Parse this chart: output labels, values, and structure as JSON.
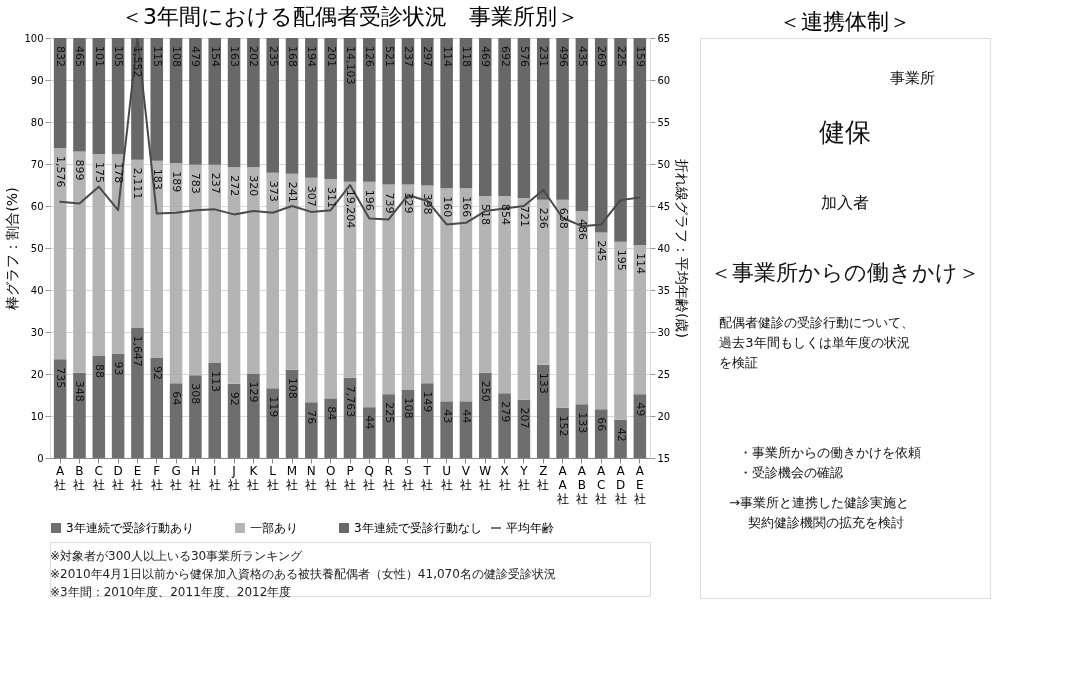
{
  "chart_data": [
    {
      "type": "bar",
      "title": "＜3年間における配偶者受診状況　事業所別＞",
      "ylabel": "棒グラフ：割合(%)",
      "y2label": "折れ線グラフ：平均年齢(歳)",
      "categories": [
        "A社",
        "B社",
        "C社",
        "D社",
        "E社",
        "F社",
        "G社",
        "H社",
        "I社",
        "J社",
        "K社",
        "L社",
        "M社",
        "N社",
        "O社",
        "P社",
        "Q社",
        "R社",
        "S社",
        "T社",
        "U社",
        "V社",
        "W社",
        "X社",
        "Y社",
        "Z社",
        "AA社",
        "AB社",
        "AC社",
        "AD社",
        "AE社"
      ],
      "stacked": true,
      "ylim": [
        0,
        100
      ],
      "yticks": [
        0,
        10,
        20,
        30,
        40,
        50,
        60,
        70,
        80,
        90,
        100
      ],
      "y2lim": [
        15,
        65
      ],
      "y2ticks": [
        15,
        20,
        25,
        30,
        35,
        40,
        45,
        50,
        55,
        60,
        65
      ],
      "grid": "y",
      "legend": "bottom",
      "series": [
        {
          "name": "3年連続で受診行動あり",
          "color": "#6e6e6e",
          "values": [
            23.5,
            20.3,
            24.3,
            24.9,
            31.1,
            23.8,
            17.8,
            19.7,
            22.6,
            17.7,
            20.1,
            16.6,
            21.0,
            13.3,
            14.2,
            19.1,
            12.1,
            15.2,
            16.3,
            17.8,
            13.5,
            13.5,
            20.3,
            15.4,
            13.9,
            22.2,
            12.0,
            12.8,
            11.6,
            9.1,
            15.2
          ]
        },
        {
          "name": "一部あり",
          "color": "#b4b4b4",
          "values": [
            50.3,
            52.7,
            48.1,
            47.4,
            39.9,
            47.0,
            52.4,
            50.1,
            47.2,
            51.5,
            49.1,
            51.3,
            46.7,
            53.4,
            52.2,
            46.7,
            53.7,
            49.9,
            48.8,
            47.1,
            50.7,
            50.7,
            42.1,
            47.0,
            48.0,
            39.3,
            49.5,
            46.0,
            42.1,
            42.4,
            35.5
          ]
        },
        {
          "name": "3年連続で受診行動なし",
          "color": "#686868",
          "values": [
            26.2,
            27.0,
            27.6,
            27.7,
            29.0,
            29.2,
            29.8,
            30.2,
            30.2,
            30.8,
            30.8,
            32.1,
            32.3,
            33.3,
            33.6,
            34.2,
            34.2,
            34.9,
            34.9,
            35.1,
            35.8,
            35.8,
            37.6,
            37.6,
            38.1,
            38.5,
            38.5,
            41.2,
            46.3,
            48.5,
            49.3
          ]
        },
        {
          "name": "平均年齢",
          "type": "line",
          "axis": "y2",
          "color": "#4a4a4a",
          "values": [
            45.5,
            45.3,
            47.3,
            44.5,
            65,
            44.1,
            44.2,
            44.5,
            44.6,
            44.0,
            44.4,
            44.2,
            45.0,
            44.3,
            44.5,
            47.5,
            43.5,
            43.4,
            46.3,
            45.6,
            42.8,
            43.0,
            44.4,
            44.7,
            45.0,
            46.9,
            43.6,
            42.6,
            42.8,
            45.7,
            46.0
          ]
        }
      ],
      "annotations": [
        "※対象者が300人以上いる30事業所ランキング",
        "※2010年4月1日以前から健保加入資格のある被扶養配偶者（女性）41,070名の健診受診状況",
        "※3年間：2010年度、2011年度、2012年度",
        {
          "text": "735",
          "x": "A社",
          "y": 23.5
        },
        {
          "text": "348",
          "x": "B社",
          "y": 20.3
        },
        {
          "text": "88",
          "x": "C社",
          "y": 24.3
        },
        {
          "text": "93",
          "x": "D社",
          "y": 24.9
        },
        {
          "text": "1,647",
          "x": "E社",
          "y": 31.1
        },
        {
          "text": "92",
          "x": "F社",
          "y": 23.8
        },
        {
          "text": "64",
          "x": "G社",
          "y": 17.8
        },
        {
          "text": "308",
          "x": "H社",
          "y": 19.7
        },
        {
          "text": "113",
          "x": "I社",
          "y": 22.6
        },
        {
          "text": "92",
          "x": "J社",
          "y": 17.7
        },
        {
          "text": "129",
          "x": "K社",
          "y": 20.1
        },
        {
          "text": "119",
          "x": "L社",
          "y": 16.6
        },
        {
          "text": "108",
          "x": "M社",
          "y": 21.0
        },
        {
          "text": "76",
          "x": "N社",
          "y": 13.3
        },
        {
          "text": "84",
          "x": "O社",
          "y": 14.2
        },
        {
          "text": "7,763",
          "x": "P社",
          "y": 19.1
        },
        {
          "text": "44",
          "x": "Q社",
          "y": 12.1
        },
        {
          "text": "225",
          "x": "R社",
          "y": 15.2
        },
        {
          "text": "108",
          "x": "S社",
          "y": 16.3
        },
        {
          "text": "149",
          "x": "T社",
          "y": 17.8
        },
        {
          "text": "43",
          "x": "U社",
          "y": 13.5
        },
        {
          "text": "44",
          "x": "V社",
          "y": 13.5
        },
        {
          "text": "250",
          "x": "W社",
          "y": 20.3
        },
        {
          "text": "279",
          "x": "X社",
          "y": 15.4
        },
        {
          "text": "207",
          "x": "Y社",
          "y": 13.9
        },
        {
          "text": "133",
          "x": "Z社",
          "y": 22.2
        },
        {
          "text": "152",
          "x": "AA社",
          "y": 12.0
        },
        {
          "text": "133",
          "x": "AB社",
          "y": 12.8
        },
        {
          "text": "66",
          "x": "AC社",
          "y": 11.6
        },
        {
          "text": "42",
          "x": "AD社",
          "y": 9.1
        },
        {
          "text": "49",
          "x": "AE社",
          "y": 15.2
        },
        {
          "text": "1,576",
          "x": "A社",
          "y": 73.8
        },
        {
          "text": "899",
          "x": "B社",
          "y": 73.0
        },
        {
          "text": "175",
          "x": "C社",
          "y": 72.4
        },
        {
          "text": "178",
          "x": "D社",
          "y": 72.3
        },
        {
          "text": "2,111",
          "x": "E社",
          "y": 71.0
        },
        {
          "text": "183",
          "x": "F社",
          "y": 70.8
        },
        {
          "text": "189",
          "x": "G社",
          "y": 70.2
        },
        {
          "text": "783",
          "x": "H社",
          "y": 69.8
        },
        {
          "text": "237",
          "x": "I社",
          "y": 69.8
        },
        {
          "text": "272",
          "x": "J社",
          "y": 69.2
        },
        {
          "text": "320",
          "x": "K社",
          "y": 69.2
        },
        {
          "text": "373",
          "x": "L社",
          "y": 67.9
        },
        {
          "text": "241",
          "x": "M社",
          "y": 67.7
        },
        {
          "text": "307",
          "x": "N社",
          "y": 66.7
        },
        {
          "text": "311",
          "x": "O社",
          "y": 66.4
        },
        {
          "text": "19,204",
          "x": "P社",
          "y": 65.8
        },
        {
          "text": "196",
          "x": "Q社",
          "y": 65.8
        },
        {
          "text": "739",
          "x": "R社",
          "y": 65.1
        },
        {
          "text": "329",
          "x": "S社",
          "y": 65.1
        },
        {
          "text": "398",
          "x": "T社",
          "y": 64.9
        },
        {
          "text": "160",
          "x": "U社",
          "y": 64.2
        },
        {
          "text": "166",
          "x": "V社",
          "y": 64.2
        },
        {
          "text": "518",
          "x": "W社",
          "y": 62.4
        },
        {
          "text": "854",
          "x": "X社",
          "y": 62.4
        },
        {
          "text": "721",
          "x": "Y社",
          "y": 61.9
        },
        {
          "text": "236",
          "x": "Z社",
          "y": 61.5
        },
        {
          "text": "638",
          "x": "AA社",
          "y": 61.5
        },
        {
          "text": "486",
          "x": "AB社",
          "y": 58.8
        },
        {
          "text": "245",
          "x": "AC社",
          "y": 53.7
        },
        {
          "text": "195",
          "x": "AD社",
          "y": 51.5
        },
        {
          "text": "114",
          "x": "AE社",
          "y": 50.7
        },
        {
          "text": "832",
          "x": "A社",
          "y": 100
        },
        {
          "text": "465",
          "x": "B社",
          "y": 100
        },
        {
          "text": "101",
          "x": "C社",
          "y": 100
        },
        {
          "text": "105",
          "x": "D社",
          "y": 100
        },
        {
          "text": "1,552",
          "x": "E社",
          "y": 100
        },
        {
          "text": "115",
          "x": "F社",
          "y": 100
        },
        {
          "text": "108",
          "x": "G社",
          "y": 100
        },
        {
          "text": "479",
          "x": "H社",
          "y": 100
        },
        {
          "text": "154",
          "x": "I社",
          "y": 100
        },
        {
          "text": "163",
          "x": "J社",
          "y": 100
        },
        {
          "text": "202",
          "x": "K社",
          "y": 100
        },
        {
          "text": "235",
          "x": "L社",
          "y": 100
        },
        {
          "text": "168",
          "x": "M社",
          "y": 100
        },
        {
          "text": "194",
          "x": "N社",
          "y": 100
        },
        {
          "text": "201",
          "x": "O社",
          "y": 100
        },
        {
          "text": "14,103",
          "x": "P社",
          "y": 100
        },
        {
          "text": "126",
          "x": "Q社",
          "y": 100
        },
        {
          "text": "521",
          "x": "R社",
          "y": 100
        },
        {
          "text": "237",
          "x": "S社",
          "y": 100
        },
        {
          "text": "297",
          "x": "T社",
          "y": 100
        },
        {
          "text": "114",
          "x": "U社",
          "y": 100
        },
        {
          "text": "118",
          "x": "V社",
          "y": 100
        },
        {
          "text": "469",
          "x": "W社",
          "y": 100
        },
        {
          "text": "692",
          "x": "X社",
          "y": 100
        },
        {
          "text": "576",
          "x": "Y社",
          "y": 100
        },
        {
          "text": "231",
          "x": "Z社",
          "y": 100
        },
        {
          "text": "496",
          "x": "AA社",
          "y": 100
        },
        {
          "text": "435",
          "x": "AB社",
          "y": 100
        },
        {
          "text": "269",
          "x": "AC社",
          "y": 100
        },
        {
          "text": "225",
          "x": "AD社",
          "y": 100
        },
        {
          "text": "159",
          "x": "AE社",
          "y": 100
        }
      ]
    },
    {
      "type": "other",
      "title": "＜連携体制＞",
      "annotations": [
        "事業所",
        "健保",
        "加入者",
        "＜事業所からの働きかけ＞",
        "配偶者健診の受診行動について、",
        "過去3年間もしくは単年度の状況",
        "を検証",
        "・事業所からの働きかけを依頼",
        "・受診機会の確認",
        "→事業所と連携した健診実施と",
        "契約健診機関の拡充を検討"
      ]
    }
  ]
}
